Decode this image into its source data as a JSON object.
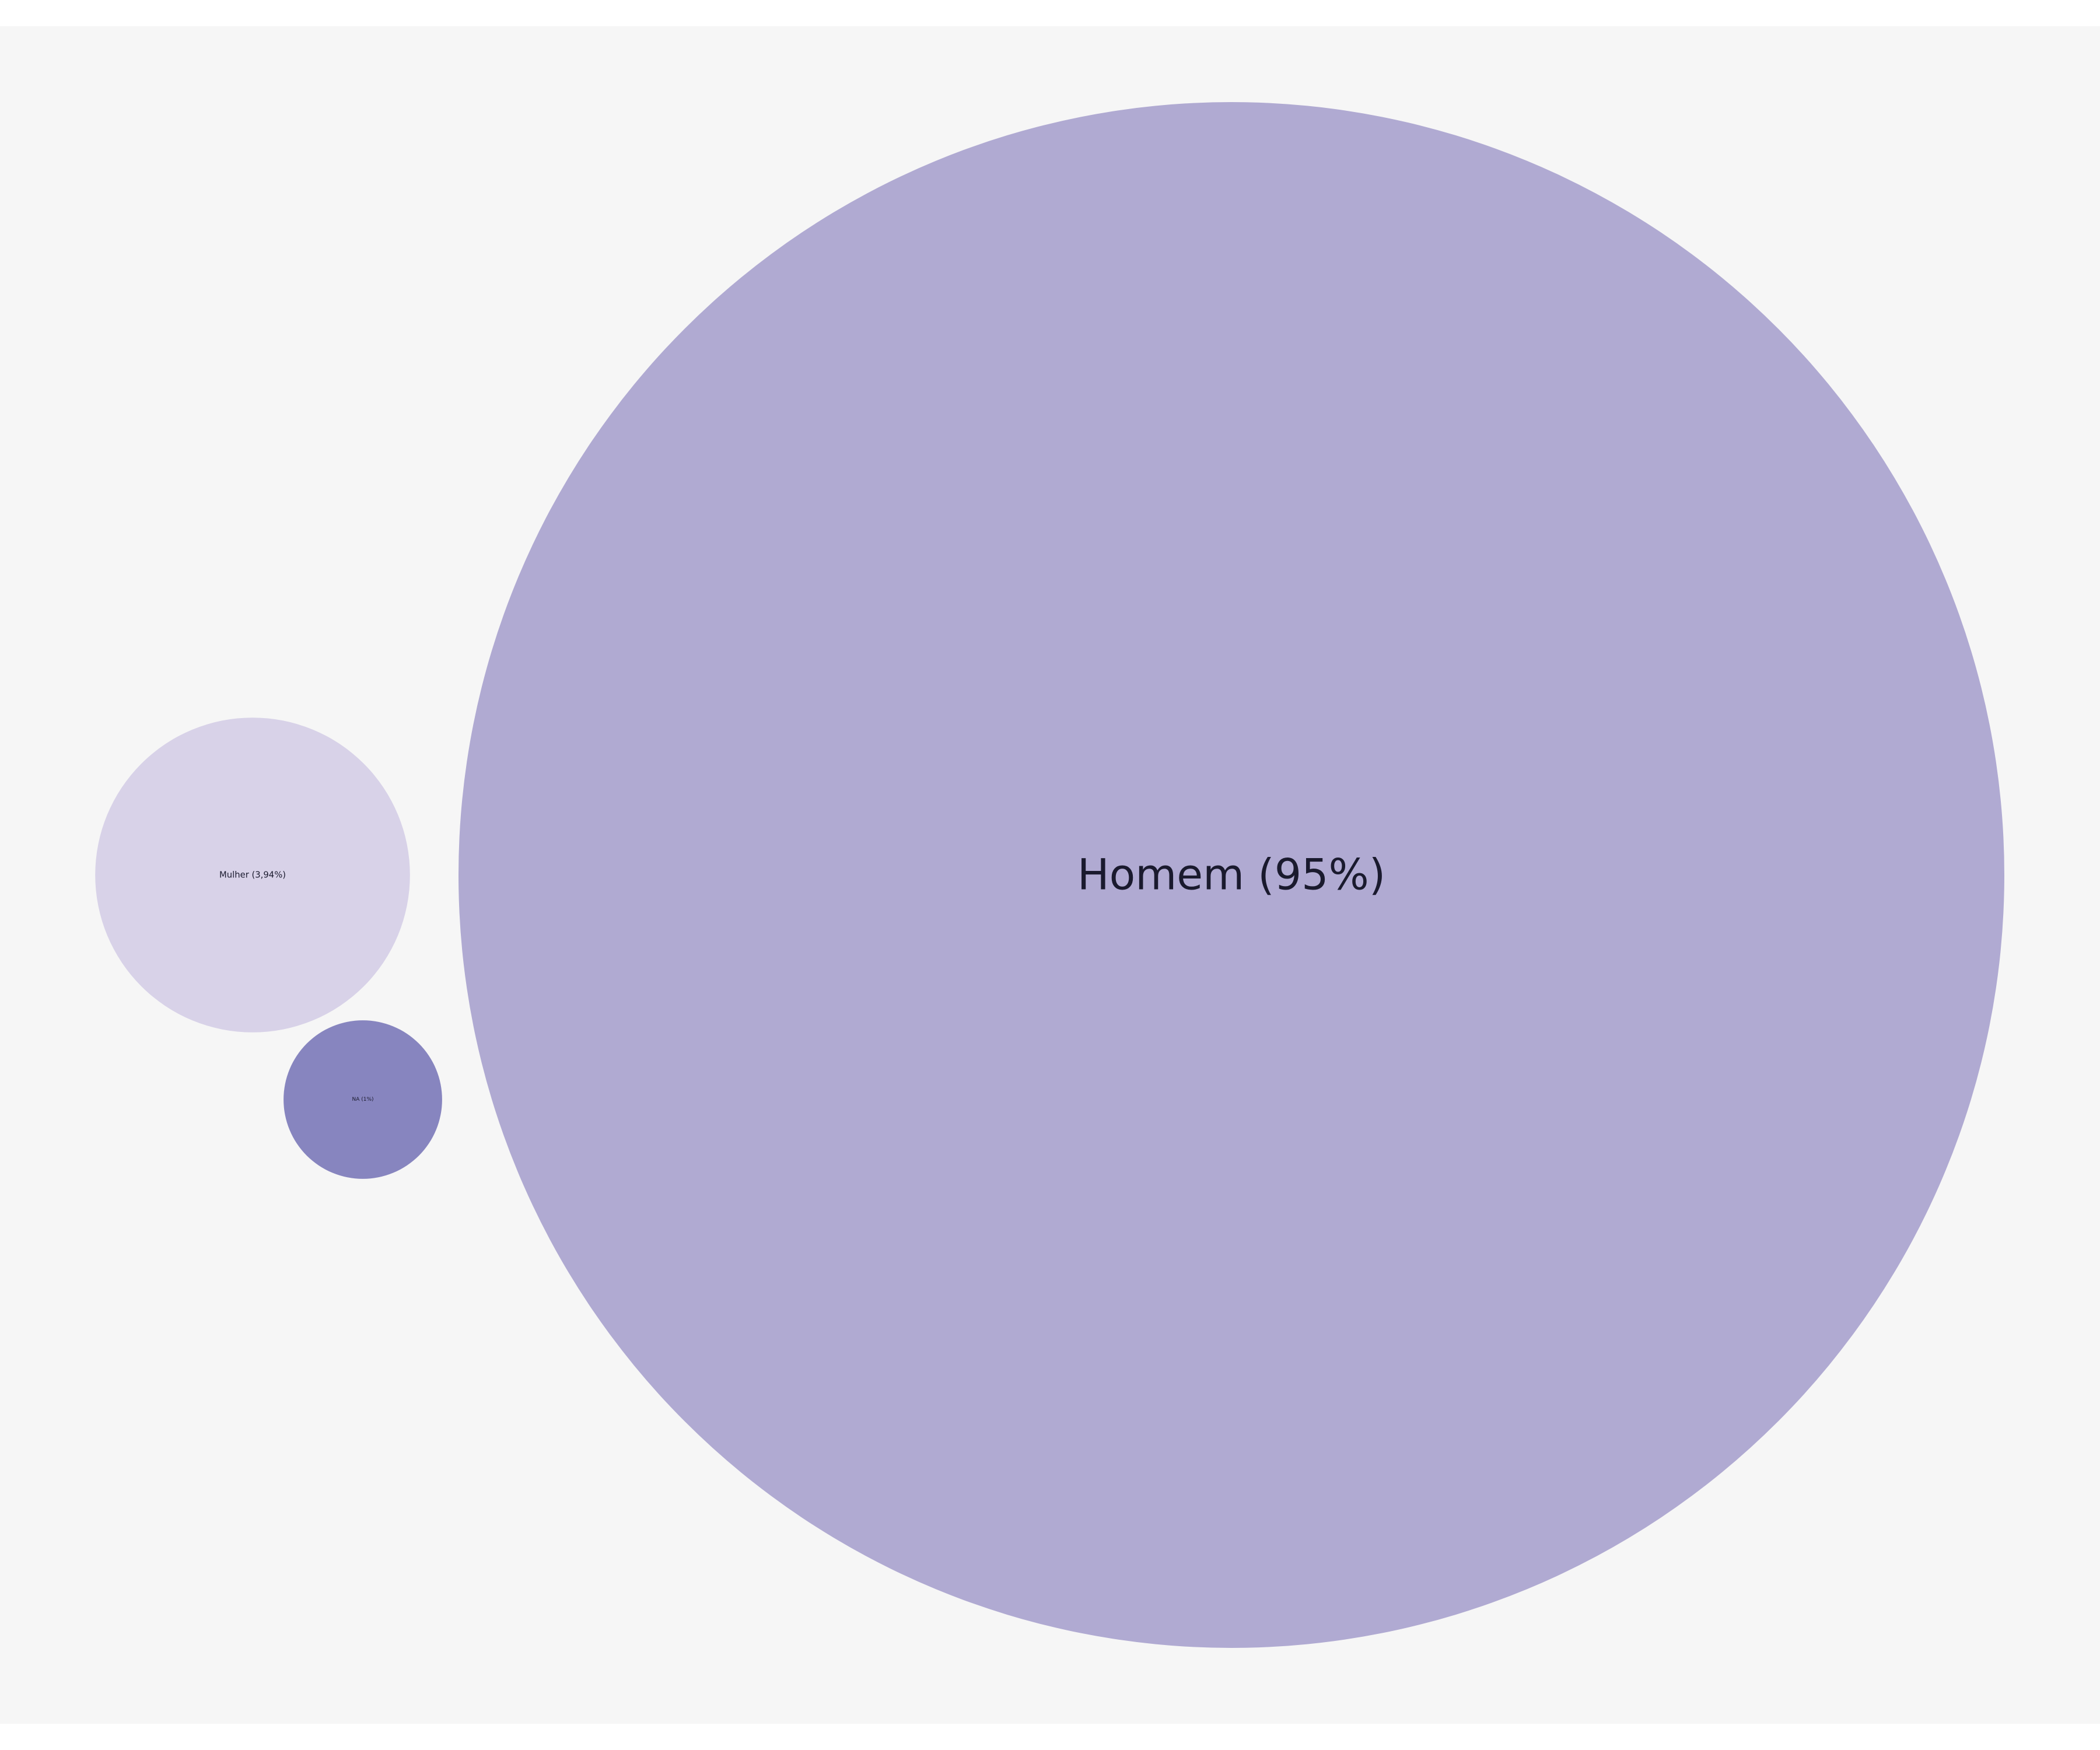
{
  "chart_data": {
    "type": "bubble",
    "title": "",
    "series": [
      {
        "name": "Homem",
        "label": "Homem (95%)",
        "value": 95,
        "color": "#b0aad2"
      },
      {
        "name": "Mulher",
        "label": "Mulher (3,94%)",
        "value": 3.94,
        "color": "#d8d2e8"
      },
      {
        "name": "NA",
        "label": "NA (1%)",
        "value": 1,
        "color": "#8785bf"
      }
    ],
    "background": "#f6f6f6"
  }
}
